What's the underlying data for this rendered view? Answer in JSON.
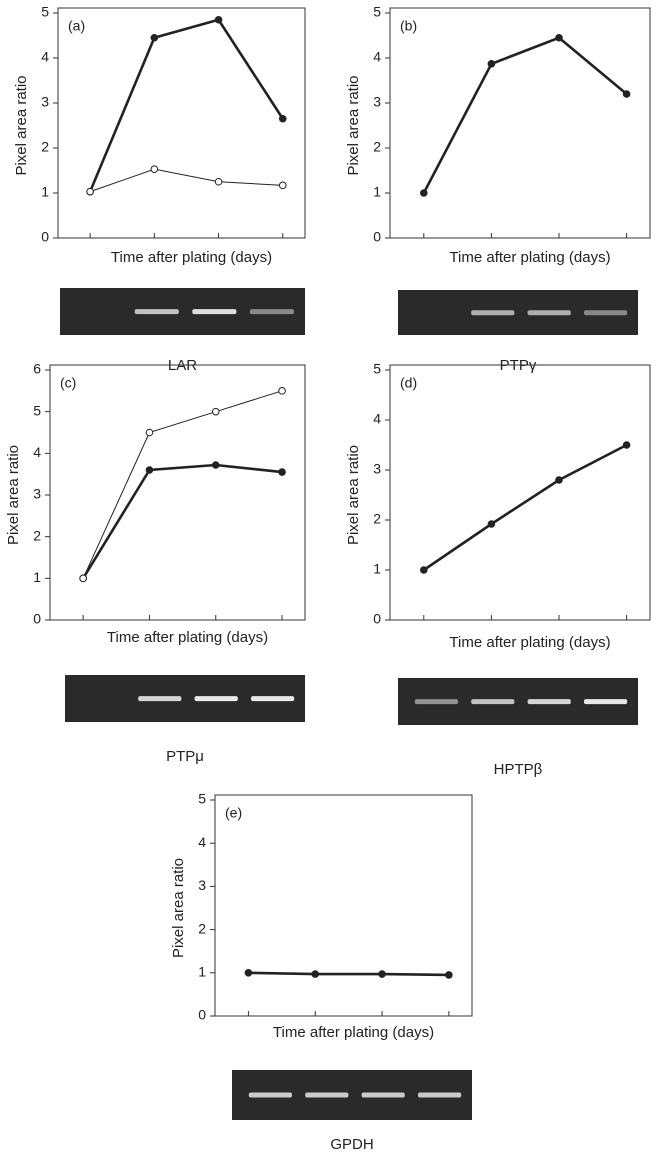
{
  "chart_data": [
    {
      "type": "line",
      "panel_label": "(a)",
      "y_label": "Pixel area ratio",
      "x_label": "Time after plating (days)",
      "gel_label": "LAR",
      "categories": [
        null,
        null,
        null,
        null
      ],
      "ylim": [
        0,
        5
      ],
      "yticks": [
        0,
        1,
        2,
        3,
        4,
        5
      ],
      "series": [
        {
          "marker": "filled",
          "color": "#222222",
          "values": [
            1.03,
            4.45,
            4.85,
            2.65
          ]
        },
        {
          "marker": "open",
          "color": "#222222",
          "values": [
            1.03,
            1.53,
            1.25,
            1.17
          ]
        }
      ]
    },
    {
      "type": "line",
      "panel_label": "(b)",
      "y_label": "Pixel area ratio",
      "x_label": "Time after plating (days)",
      "gel_label": "PTPγ",
      "categories": [
        null,
        null,
        null,
        null
      ],
      "ylim": [
        0,
        5
      ],
      "yticks": [
        0,
        1,
        2,
        3,
        4,
        5
      ],
      "series": [
        {
          "marker": "filled",
          "color": "#222222",
          "values": [
            1.0,
            3.87,
            4.45,
            3.2
          ]
        }
      ]
    },
    {
      "type": "line",
      "panel_label": "(c)",
      "y_label": "Pixel area ratio",
      "x_label": "Time after plating (days)",
      "gel_label": "PTPμ",
      "categories": [
        null,
        null,
        null,
        null
      ],
      "ylim": [
        0,
        6
      ],
      "yticks": [
        0,
        1,
        2,
        3,
        4,
        5,
        6
      ],
      "series": [
        {
          "marker": "filled",
          "color": "#222222",
          "values": [
            1.0,
            3.6,
            3.72,
            3.55
          ]
        },
        {
          "marker": "open",
          "color": "#222222",
          "values": [
            1.0,
            4.5,
            5.0,
            5.5
          ]
        }
      ]
    },
    {
      "type": "line",
      "panel_label": "(d)",
      "y_label": "Pixel area ratio",
      "x_label": "Time after plating (days)",
      "gel_label": "HPTPβ",
      "categories": [
        null,
        null,
        null,
        null
      ],
      "ylim": [
        0,
        5
      ],
      "yticks": [
        0,
        1,
        2,
        3,
        4,
        5
      ],
      "series": [
        {
          "marker": "filled",
          "color": "#222222",
          "values": [
            1.0,
            1.92,
            2.8,
            3.5
          ]
        }
      ]
    },
    {
      "type": "line",
      "panel_label": "(e)",
      "y_label": "Pixel area ratio",
      "x_label": "Time after plating (days)",
      "gel_label": "GPDH",
      "categories": [
        null,
        null,
        null,
        null
      ],
      "ylim": [
        0,
        5
      ],
      "yticks": [
        0,
        1,
        2,
        3,
        4,
        5
      ],
      "series": [
        {
          "marker": "filled",
          "color": "#222222",
          "values": [
            1.0,
            0.97,
            0.97,
            0.95
          ]
        }
      ]
    }
  ]
}
